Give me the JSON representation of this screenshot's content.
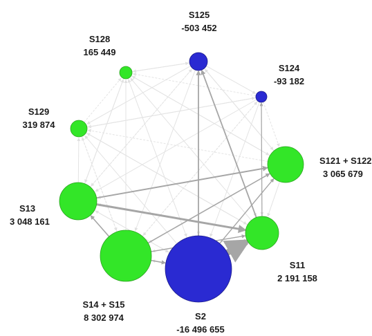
{
  "colors": {
    "positive": "#33e628",
    "negative": "#2a2ad2",
    "flow_major": "#a6a6a6",
    "flow_minor": "#e3e3e3"
  },
  "nodes": [
    {
      "id": "S125",
      "name": "S125",
      "value": "-503 452",
      "sign": "negative"
    },
    {
      "id": "S124",
      "name": "S124",
      "value": "-93 182",
      "sign": "negative"
    },
    {
      "id": "S121_S122",
      "name": "S121 + S122",
      "value": "3 065 679",
      "sign": "positive"
    },
    {
      "id": "S11",
      "name": "S11",
      "value": "2 191 158",
      "sign": "positive"
    },
    {
      "id": "S2",
      "name": "S2",
      "value": "-16 496 655",
      "sign": "negative"
    },
    {
      "id": "S14_S15",
      "name": "S14 + S15",
      "value": "8 302 974",
      "sign": "positive"
    },
    {
      "id": "S13",
      "name": "S13",
      "value": "3 048 161",
      "sign": "positive"
    },
    {
      "id": "S129",
      "name": "S129",
      "value": "319 874",
      "sign": "positive"
    },
    {
      "id": "S128",
      "name": "S128",
      "value": "165 449",
      "sign": "positive"
    }
  ],
  "major_flows": [
    {
      "from": "S13",
      "to": "S11",
      "weight": 3
    },
    {
      "from": "S2",
      "to": "S11",
      "weight": 9
    },
    {
      "from": "S13",
      "to": "S121_S122",
      "weight": 2
    },
    {
      "from": "S14_S15",
      "to": "S121_S122",
      "weight": 1.6
    },
    {
      "from": "S2",
      "to": "S125",
      "weight": 1.8
    },
    {
      "from": "S11",
      "to": "S125",
      "weight": 1.8
    },
    {
      "from": "S14_S15",
      "to": "S13",
      "weight": 1.6
    },
    {
      "from": "S14_S15",
      "to": "S11",
      "weight": 1.4
    },
    {
      "from": "S2",
      "to": "S121_S122",
      "weight": 1.4
    },
    {
      "from": "S14_S15",
      "to": "S2",
      "weight": 1.6
    },
    {
      "from": "S11",
      "to": "S124",
      "weight": 1.2
    }
  ]
}
